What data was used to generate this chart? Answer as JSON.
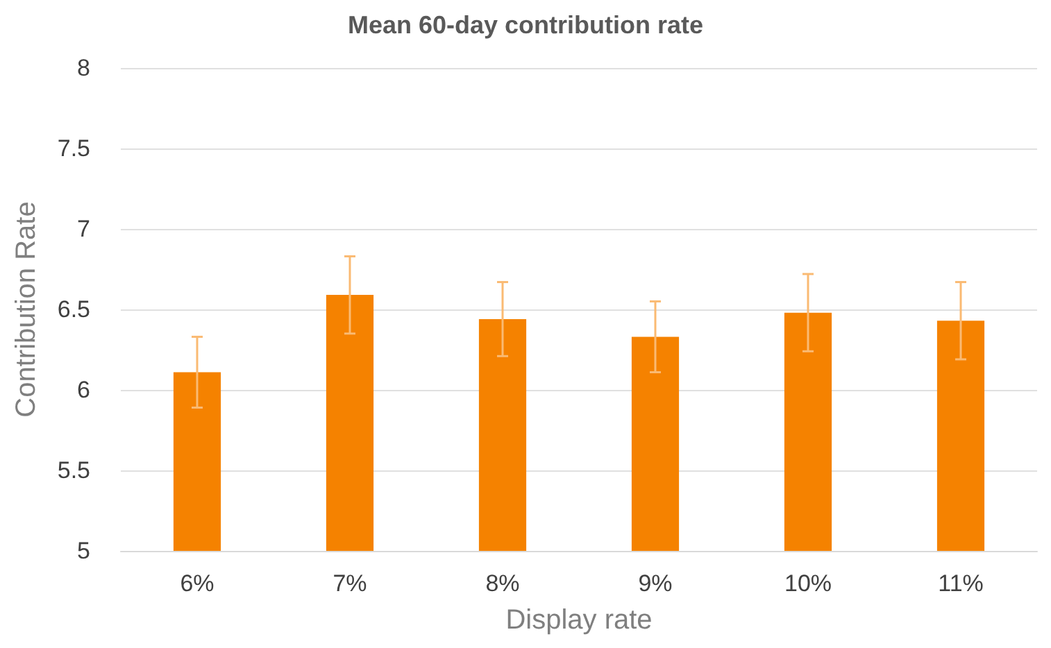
{
  "chart_data": {
    "type": "bar",
    "title": "Mean 60-day contribution rate",
    "xlabel": "Display rate",
    "ylabel": "Contribution Rate",
    "categories": [
      "6%",
      "7%",
      "8%",
      "9%",
      "10%",
      "11%"
    ],
    "values": [
      6.11,
      6.59,
      6.44,
      6.33,
      6.48,
      6.43
    ],
    "errors": [
      0.22,
      0.24,
      0.23,
      0.22,
      0.24,
      0.24
    ],
    "color": "#f58200",
    "ylim": [
      5,
      8
    ],
    "yticks": [
      5,
      5.5,
      6,
      6.5,
      7,
      7.5,
      8
    ],
    "grid": "y"
  }
}
